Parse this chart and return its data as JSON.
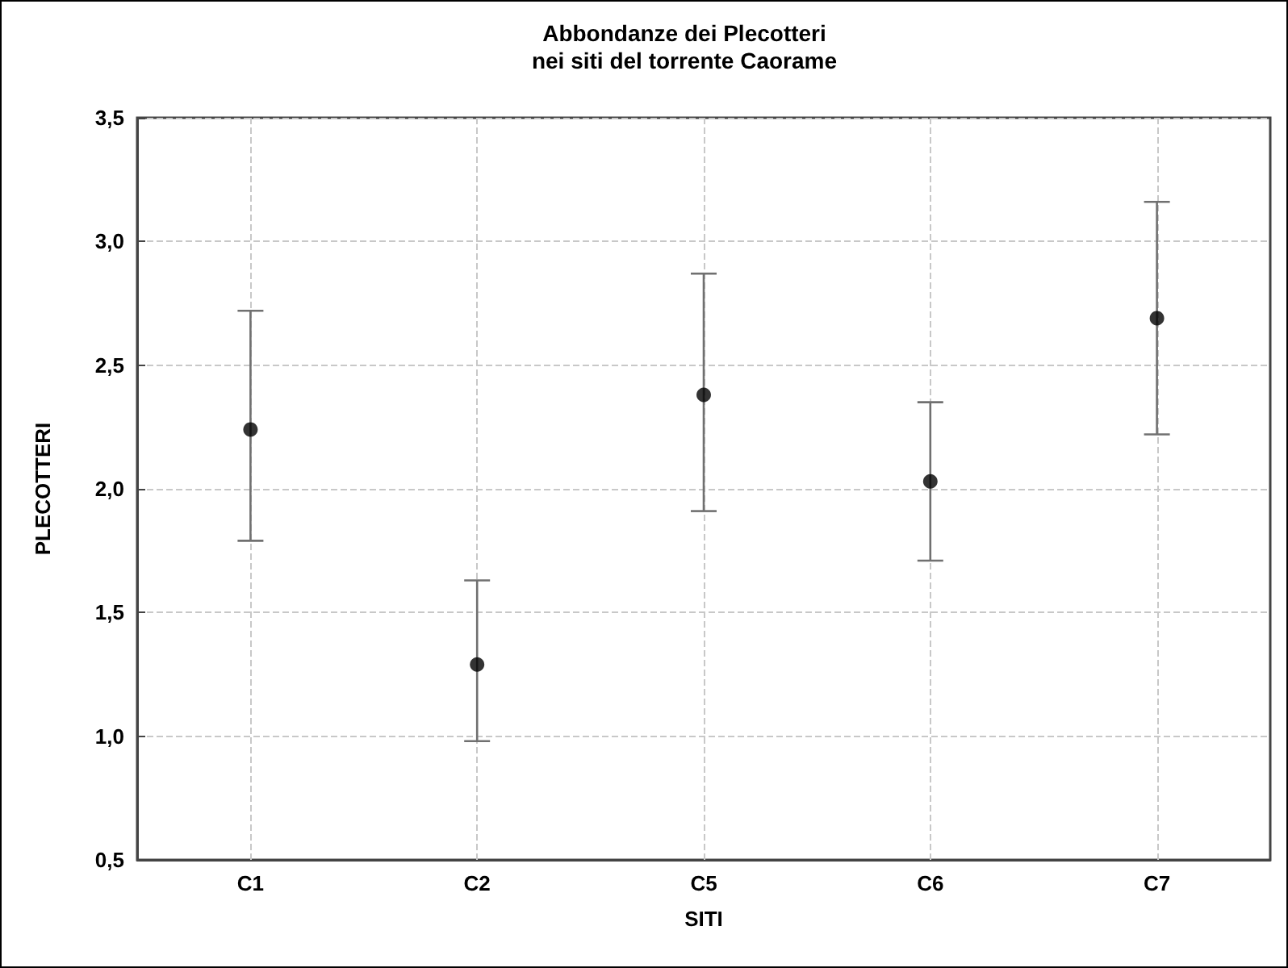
{
  "chart_data": {
    "type": "scatter",
    "title": "Abbondanze dei Plecotteri\nnei siti del torrente Caorame",
    "xlabel": "SITI",
    "ylabel": "PLECOTTERI",
    "categories": [
      "C1",
      "C2",
      "C5",
      "C6",
      "C7"
    ],
    "series": [
      {
        "color": "#000000",
        "values": [
          2.24,
          1.29,
          2.38,
          2.03,
          2.69
        ],
        "errors": [
          [
            1.79,
            2.72
          ],
          [
            0.98,
            1.63
          ],
          [
            1.91,
            2.87
          ],
          [
            1.71,
            2.35
          ],
          [
            2.22,
            3.16
          ]
        ]
      }
    ],
    "ylim": [
      0.5,
      3.5
    ],
    "yticks": [
      {
        "value": 0.5,
        "label": "0,5"
      },
      {
        "value": 1.0,
        "label": "1,0"
      },
      {
        "value": 1.5,
        "label": "1,5"
      },
      {
        "value": 2.0,
        "label": "2,0"
      },
      {
        "value": 2.5,
        "label": "2,5"
      },
      {
        "value": 3.0,
        "label": "3,0"
      },
      {
        "value": 3.5,
        "label": "3,5"
      }
    ],
    "grid": true,
    "marker": "circle"
  }
}
